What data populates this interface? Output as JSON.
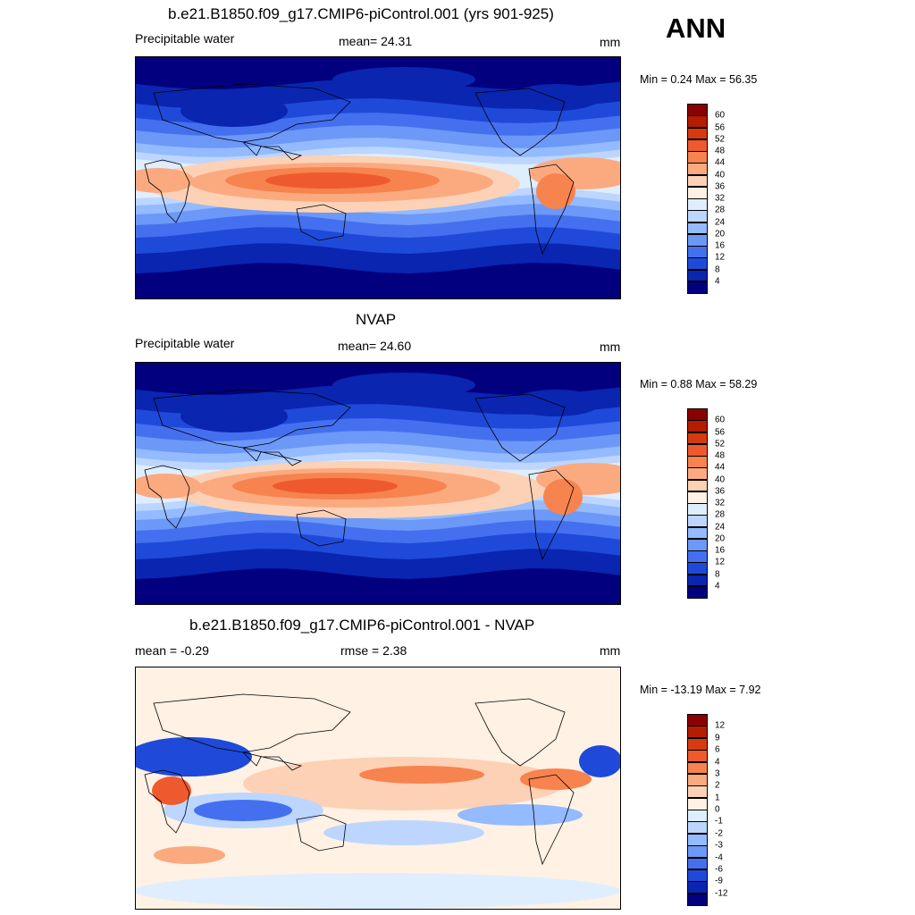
{
  "season": "ANN",
  "panels": [
    {
      "title": "b.e21.B1850.f09_g17.CMIP6-piControl.001 (yrs 901-925)",
      "left_label": "Precipitable water",
      "center_label": "mean=  24.31",
      "units": "mm",
      "minmax": "Min =   0.24 Max =  56.35",
      "colorbar": {
        "labels": [
          "60",
          "56",
          "52",
          "48",
          "44",
          "40",
          "36",
          "32",
          "28",
          "24",
          "20",
          "16",
          "12",
          "8",
          "4"
        ],
        "colors": [
          "#8b0000",
          "#b51c00",
          "#d83a10",
          "#ee5a2e",
          "#f7834f",
          "#fbaa80",
          "#fdd1b5",
          "#fff1e4",
          "#dfeeff",
          "#bcd6ff",
          "#94baff",
          "#6c98f7",
          "#4470ef",
          "#1f4ad9",
          "#0a25b0",
          "#03007f"
        ]
      },
      "field": "model"
    },
    {
      "title": "NVAP",
      "left_label": "Precipitable water",
      "center_label": "mean=  24.60",
      "units": "mm",
      "minmax": "Min =   0.88 Max =  58.29",
      "colorbar": {
        "labels": [
          "60",
          "56",
          "52",
          "48",
          "44",
          "40",
          "36",
          "32",
          "28",
          "24",
          "20",
          "16",
          "12",
          "8",
          "4"
        ],
        "colors": [
          "#8b0000",
          "#b51c00",
          "#d83a10",
          "#ee5a2e",
          "#f7834f",
          "#fbaa80",
          "#fdd1b5",
          "#fff1e4",
          "#dfeeff",
          "#bcd6ff",
          "#94baff",
          "#6c98f7",
          "#4470ef",
          "#1f4ad9",
          "#0a25b0",
          "#03007f"
        ]
      },
      "field": "obs"
    },
    {
      "title": "b.e21.B1850.f09_g17.CMIP6-piControl.001 - NVAP",
      "left_label": "mean =  -0.29",
      "center_label": "rmse =   2.38",
      "units": "mm",
      "minmax": "Min = -13.19 Max =   7.92",
      "colorbar": {
        "labels": [
          "12",
          "9",
          "6",
          "4",
          "3",
          "2",
          "1",
          "0",
          "-1",
          "-2",
          "-3",
          "-4",
          "-6",
          "-9",
          "-12"
        ],
        "colors": [
          "#8b0000",
          "#b51c00",
          "#d83a10",
          "#ee5a2e",
          "#f7834f",
          "#fbaa80",
          "#fdd1b5",
          "#fff1e4",
          "#dfeeff",
          "#bcd6ff",
          "#94baff",
          "#6c98f7",
          "#4470ef",
          "#1f4ad9",
          "#0a25b0",
          "#03007f"
        ]
      },
      "field": "diff"
    }
  ]
}
